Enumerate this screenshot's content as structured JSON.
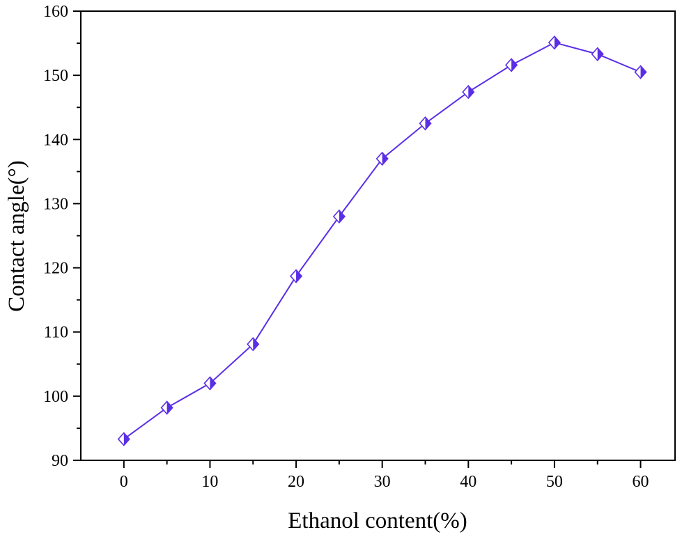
{
  "chart_data": {
    "type": "line",
    "title": "",
    "xlabel": "Ethanol content(%)",
    "ylabel": "Contact angle(°)",
    "xlim": [
      -5,
      64
    ],
    "ylim": [
      90,
      160
    ],
    "x_ticks": [
      0,
      10,
      20,
      30,
      40,
      50,
      60
    ],
    "y_ticks": [
      90,
      100,
      110,
      120,
      130,
      140,
      150,
      160
    ],
    "grid": false,
    "legend": "none",
    "marker": "half-filled-diamond",
    "series": [
      {
        "color": "#5a2ee6",
        "x": [
          0,
          5,
          10,
          15,
          20,
          25,
          30,
          35,
          40,
          45,
          50,
          55,
          60
        ],
        "y": [
          93.3,
          98.2,
          102.0,
          108.1,
          118.7,
          128.0,
          137.0,
          142.5,
          147.4,
          151.6,
          155.1,
          153.3,
          150.5
        ]
      }
    ]
  }
}
